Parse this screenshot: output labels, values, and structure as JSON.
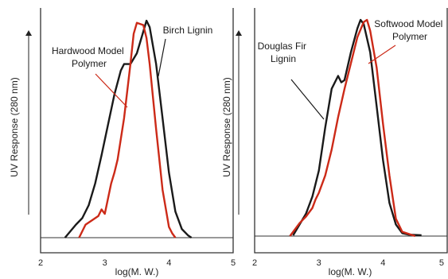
{
  "colors": {
    "black_series": "#1a1a1a",
    "red_series": "#cc2a18",
    "frame": "#333333"
  },
  "chart_data": [
    {
      "type": "line",
      "xlabel": "log(M. W.)",
      "ylabel": "UV Response (280 nm)",
      "xlim": [
        2,
        5
      ],
      "x_ticks": [
        "2",
        "3",
        "4",
        "5"
      ],
      "grid": false,
      "annotations": [
        {
          "lines": [
            "Birch Lignin"
          ],
          "series": "black"
        },
        {
          "lines": [
            "Hardwood Model",
            "Polymer"
          ],
          "series": "red"
        }
      ],
      "series": [
        {
          "color_key": "black_series",
          "x": [
            2.38,
            2.55,
            2.65,
            2.75,
            2.85,
            2.95,
            3.05,
            3.15,
            3.25,
            3.3,
            3.4,
            3.5,
            3.58,
            3.65,
            3.7,
            3.8,
            3.9,
            4.0,
            4.1,
            4.2,
            4.3,
            4.35
          ],
          "y": [
            0,
            0.06,
            0.09,
            0.15,
            0.25,
            0.38,
            0.52,
            0.66,
            0.77,
            0.8,
            0.8,
            0.85,
            0.93,
            1.0,
            0.97,
            0.8,
            0.55,
            0.3,
            0.12,
            0.04,
            0.01,
            0
          ]
        },
        {
          "color_key": "red_series",
          "x": [
            2.6,
            2.7,
            2.8,
            2.9,
            2.95,
            3.0,
            3.05,
            3.1,
            3.15,
            3.2,
            3.3,
            3.4,
            3.45,
            3.5,
            3.6,
            3.65,
            3.7,
            3.8,
            3.9,
            4.0,
            4.05,
            4.1
          ],
          "y": [
            0,
            0.06,
            0.08,
            0.1,
            0.13,
            0.11,
            0.18,
            0.25,
            0.3,
            0.36,
            0.55,
            0.8,
            0.94,
            0.99,
            0.98,
            0.92,
            0.8,
            0.5,
            0.22,
            0.05,
            0.02,
            0
          ]
        }
      ]
    },
    {
      "type": "line",
      "xlabel": "log(M. W.)",
      "ylabel": "UV Response (280 nm)",
      "xlim": [
        2,
        5
      ],
      "x_ticks": [
        "2",
        "3",
        "4",
        "5"
      ],
      "grid": false,
      "annotations": [
        {
          "lines": [
            "Douglas Fir",
            "Lignin"
          ],
          "series": "black"
        },
        {
          "lines": [
            "Softwood Model",
            "Polymer"
          ],
          "series": "red"
        }
      ],
      "series": [
        {
          "color_key": "black_series",
          "x": [
            2.6,
            2.7,
            2.8,
            2.9,
            3.0,
            3.1,
            3.2,
            3.3,
            3.35,
            3.4,
            3.5,
            3.6,
            3.65,
            3.7,
            3.8,
            3.9,
            4.0,
            4.1,
            4.2,
            4.3,
            4.4,
            4.6
          ],
          "y": [
            0,
            0.05,
            0.1,
            0.18,
            0.3,
            0.5,
            0.68,
            0.74,
            0.71,
            0.72,
            0.85,
            0.96,
            1.0,
            0.98,
            0.85,
            0.6,
            0.35,
            0.15,
            0.05,
            0.01,
            0.003,
            0
          ]
        },
        {
          "color_key": "red_series",
          "x": [
            2.55,
            2.7,
            2.8,
            2.9,
            2.95,
            3.0,
            3.1,
            3.2,
            3.3,
            3.4,
            3.5,
            3.6,
            3.7,
            3.75,
            3.8,
            3.9,
            4.0,
            4.1,
            4.2,
            4.3,
            4.5
          ],
          "y": [
            0,
            0.06,
            0.09,
            0.13,
            0.17,
            0.2,
            0.28,
            0.4,
            0.55,
            0.68,
            0.8,
            0.92,
            0.99,
            1.0,
            0.95,
            0.78,
            0.52,
            0.28,
            0.08,
            0.02,
            0
          ]
        }
      ]
    }
  ]
}
